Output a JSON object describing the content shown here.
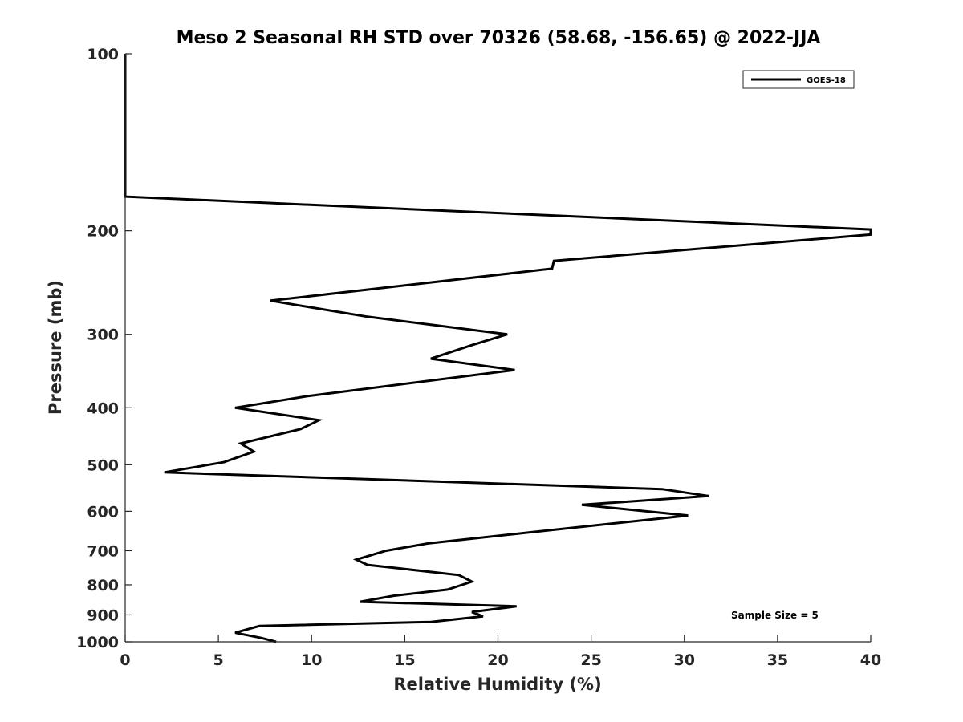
{
  "chart_data": {
    "type": "line",
    "title": "Meso 2 Seasonal RH STD over 70326 (58.68, -156.65) @ 2022-JJA",
    "xlabel": "Relative Humidity (%)",
    "ylabel": "Pressure (mb)",
    "xlim": [
      0,
      40
    ],
    "ylim": [
      100,
      1000
    ],
    "yscale": "log",
    "y_reversed": true,
    "grid": false,
    "legend_location": "top-right",
    "x_ticks": [
      "0",
      "5",
      "10",
      "15",
      "20",
      "25",
      "30",
      "35",
      "40"
    ],
    "y_ticks": [
      "100",
      "200",
      "300",
      "400",
      "500",
      "600",
      "700",
      "800",
      "900",
      "1000"
    ],
    "annotation": "Sample Size = 5",
    "series": [
      {
        "name": "GOES-18",
        "color": "#000000",
        "x": [
          0,
          0,
          0,
          40,
          40,
          23.0,
          22.9,
          7.8,
          13.0,
          20.5,
          18.6,
          16.4,
          20.9,
          9.8,
          5.9,
          10.4,
          9.4,
          6.2,
          6.9,
          5.3,
          2.1,
          28.8,
          31.3,
          24.5,
          30.2,
          23.0,
          16.3,
          14.0,
          12.4,
          13.0,
          17.9,
          18.6,
          17.3,
          14.4,
          12.6,
          21.0,
          18.6,
          19.2,
          16.4,
          7.2,
          5.9,
          7.3,
          8.1
        ],
        "y": [
          100,
          150,
          175,
          199,
          203,
          225,
          232,
          263,
          280,
          300,
          313,
          330,
          345,
          382,
          400,
          420,
          435,
          460,
          475,
          495,
          515,
          550,
          565,
          585,
          610,
          645,
          680,
          700,
          725,
          740,
          770,
          790,
          815,
          835,
          855,
          870,
          890,
          905,
          925,
          940,
          965,
          985,
          1000
        ]
      }
    ]
  }
}
